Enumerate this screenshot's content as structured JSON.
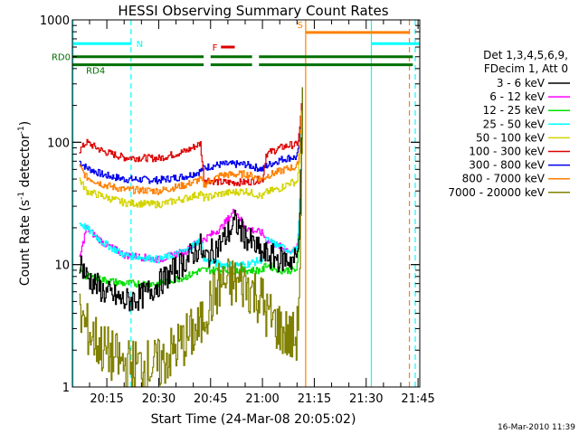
{
  "chart_data": {
    "type": "line",
    "title": "HESSI Observing Summary Count Rates",
    "xlabel": "Start Time (24-Mar-08 20:05:02)",
    "ylabel_main": "Count Rate (s",
    "ylabel_sup1": "-1",
    "ylabel_mid": " detector",
    "ylabel_sup2": "-1",
    "ylabel_end": ")",
    "yscale": "log",
    "ylim": [
      1,
      1000
    ],
    "xlim_min": [
      5.03,
      105.5
    ],
    "x_unit": "minutes after 20:00",
    "x_ticks": [
      {
        "min": 15,
        "label": "20:15"
      },
      {
        "min": 30,
        "label": "20:30"
      },
      {
        "min": 45,
        "label": "20:45"
      },
      {
        "min": 60,
        "label": "21:00"
      },
      {
        "min": 75,
        "label": "21:15"
      },
      {
        "min": 90,
        "label": "21:30"
      },
      {
        "min": 105,
        "label": "21:45"
      }
    ],
    "y_ticks": [
      {
        "v": 1,
        "label": "1"
      },
      {
        "v": 10,
        "label": "10"
      },
      {
        "v": 100,
        "label": "100"
      },
      {
        "v": 1000,
        "label": "1000"
      }
    ],
    "legend": {
      "header1": "Det 1,3,4,5,6,9,",
      "header2": "FDecim 1, Att 0",
      "entries": [
        {
          "label": "3 - 6 keV",
          "color": "#000000"
        },
        {
          "label": "6 - 12 keV",
          "color": "#ff00ff"
        },
        {
          "label": "12 - 25 keV",
          "color": "#00e000"
        },
        {
          "label": "25 - 50 keV",
          "color": "#00ffff"
        },
        {
          "label": "50 - 100 keV",
          "color": "#d4d400"
        },
        {
          "label": "100 - 300 keV",
          "color": "#dd0000"
        },
        {
          "label": "300 - 800 keV",
          "color": "#0000ee"
        },
        {
          "label": "800 - 7000 keV",
          "color": "#ff8000"
        },
        {
          "label": "7000 - 20000 keV",
          "color": "#808000"
        }
      ]
    },
    "series_levels": [
      {
        "name": "300 - 800 keV",
        "color": "#0000ee",
        "segments": [
          [
            7,
            70
          ],
          [
            9,
            62
          ],
          [
            14,
            54
          ],
          [
            20,
            50
          ],
          [
            30,
            49
          ],
          [
            38,
            53
          ],
          [
            42,
            58
          ],
          [
            43,
            62
          ],
          [
            48,
            66
          ],
          [
            55,
            66
          ],
          [
            60,
            60
          ],
          [
            61,
            64
          ],
          [
            65,
            72
          ],
          [
            68,
            75
          ]
        ]
      },
      {
        "name": "100 - 300 keV",
        "color": "#dd0000",
        "segments": [
          [
            7,
            85
          ],
          [
            9,
            100
          ],
          [
            14,
            84
          ],
          [
            20,
            75
          ],
          [
            30,
            74
          ],
          [
            38,
            85
          ],
          [
            42,
            98
          ],
          [
            43,
            50
          ],
          [
            48,
            47
          ],
          [
            55,
            47
          ],
          [
            60,
            50
          ],
          [
            61,
            80
          ],
          [
            65,
            90
          ],
          [
            68,
            95
          ]
        ]
      },
      {
        "name": "800 - 7000 keV",
        "color": "#ff8000",
        "segments": [
          [
            7,
            63
          ],
          [
            9,
            52
          ],
          [
            14,
            45
          ],
          [
            20,
            41
          ],
          [
            30,
            40
          ],
          [
            38,
            45
          ],
          [
            42,
            50
          ],
          [
            43,
            45
          ],
          [
            48,
            54
          ],
          [
            55,
            55
          ],
          [
            60,
            50
          ],
          [
            61,
            53
          ],
          [
            65,
            58
          ],
          [
            68,
            62
          ]
        ]
      },
      {
        "name": "50 - 100 keV",
        "color": "#d4d400",
        "segments": [
          [
            7,
            50
          ],
          [
            9,
            40
          ],
          [
            14,
            36
          ],
          [
            20,
            32
          ],
          [
            30,
            31
          ],
          [
            38,
            35
          ],
          [
            42,
            38
          ],
          [
            43,
            35
          ],
          [
            48,
            38
          ],
          [
            55,
            40
          ],
          [
            60,
            36
          ],
          [
            61,
            39
          ],
          [
            65,
            42
          ],
          [
            68,
            47
          ]
        ]
      },
      {
        "name": "6 - 12 keV",
        "color": "#ff00ff",
        "segments": [
          [
            7,
            11
          ],
          [
            9,
            20
          ],
          [
            14,
            15
          ],
          [
            20,
            12
          ],
          [
            30,
            11
          ],
          [
            38,
            13
          ],
          [
            42,
            16
          ],
          [
            43,
            16
          ],
          [
            48,
            20
          ],
          [
            52,
            28
          ],
          [
            55,
            20
          ],
          [
            60,
            18
          ],
          [
            61,
            16
          ],
          [
            65,
            14
          ],
          [
            68,
            13
          ]
        ]
      },
      {
        "name": "25 - 50 keV",
        "color": "#00ffff",
        "segments": [
          [
            7,
            22
          ],
          [
            9,
            20
          ],
          [
            14,
            15
          ],
          [
            20,
            12
          ],
          [
            30,
            11
          ],
          [
            38,
            13
          ],
          [
            42,
            16
          ],
          [
            43,
            11
          ],
          [
            48,
            10
          ],
          [
            55,
            10
          ],
          [
            60,
            11
          ],
          [
            61,
            16
          ],
          [
            65,
            14
          ],
          [
            68,
            13
          ]
        ]
      },
      {
        "name": "12 - 25 keV",
        "color": "#00e000",
        "segments": [
          [
            7,
            9
          ],
          [
            9,
            8
          ],
          [
            14,
            7.5
          ],
          [
            20,
            7
          ],
          [
            30,
            7
          ],
          [
            38,
            8
          ],
          [
            42,
            9
          ],
          [
            43,
            9
          ],
          [
            48,
            9
          ],
          [
            55,
            9
          ],
          [
            60,
            9
          ],
          [
            61,
            10
          ],
          [
            65,
            9
          ],
          [
            68,
            9
          ]
        ]
      },
      {
        "name": "3 - 6 keV",
        "color": "#000000",
        "segments": [
          [
            7,
            11
          ],
          [
            9,
            8
          ],
          [
            14,
            6
          ],
          [
            20,
            5
          ],
          [
            25,
            5.5
          ],
          [
            30,
            7
          ],
          [
            38,
            11
          ],
          [
            42,
            14
          ],
          [
            43,
            11
          ],
          [
            48,
            15
          ],
          [
            52,
            22
          ],
          [
            55,
            17
          ],
          [
            60,
            12
          ],
          [
            61,
            12
          ],
          [
            65,
            11
          ],
          [
            68,
            11
          ]
        ]
      },
      {
        "name": "7000 - 20000 keV",
        "color": "#808000",
        "segments": [
          [
            7,
            4
          ],
          [
            9,
            3
          ],
          [
            14,
            2
          ],
          [
            20,
            1.5
          ],
          [
            30,
            1.5
          ],
          [
            38,
            2.5
          ],
          [
            42,
            3
          ],
          [
            43,
            4
          ],
          [
            48,
            7
          ],
          [
            55,
            7
          ],
          [
            60,
            5
          ],
          [
            61,
            4
          ],
          [
            65,
            3
          ],
          [
            68,
            2.5
          ]
        ]
      }
    ],
    "flare_spike_min": 71.5,
    "flare_peak": 280,
    "annotations": {
      "N": {
        "label": "N",
        "color": "#00ffff",
        "bars": [
          [
            5.03,
            22
          ],
          [
            91.5,
            105.5
          ]
        ],
        "level": 640
      },
      "S": {
        "label": "S",
        "color": "#ff8000",
        "bars": [
          [
            72.5,
            102.5
          ]
        ],
        "level": 790
      },
      "F": {
        "label": "F",
        "color": "#dd0000",
        "bars": [
          [
            48,
            52
          ]
        ],
        "level": 600
      },
      "RD0": {
        "label": "RD0",
        "color": "#007000",
        "bars": [
          [
            5.03,
            43
          ],
          [
            45,
            57
          ],
          [
            59,
            103.5
          ]
        ],
        "level": 500
      },
      "RD4": {
        "label": "RD4",
        "color": "#007000",
        "bars": [
          [
            5.03,
            43
          ],
          [
            45,
            57
          ],
          [
            59,
            103.5
          ]
        ],
        "level": 430
      }
    },
    "vlines": [
      {
        "min": 5.2,
        "color": "#00ffff",
        "style": "solid"
      },
      {
        "min": 22,
        "color": "#00ffff",
        "style": "dashed"
      },
      {
        "min": 72.5,
        "color": "#ff8000",
        "style": "solid"
      },
      {
        "min": 91.5,
        "color": "#00ffff",
        "style": "solid"
      },
      {
        "min": 102.5,
        "color": "#ff8000",
        "style": "dashed"
      },
      {
        "min": 104.2,
        "color": "#00ffff",
        "style": "dashed"
      }
    ]
  },
  "footer_stamp": "16-Mar-2010 11:39"
}
